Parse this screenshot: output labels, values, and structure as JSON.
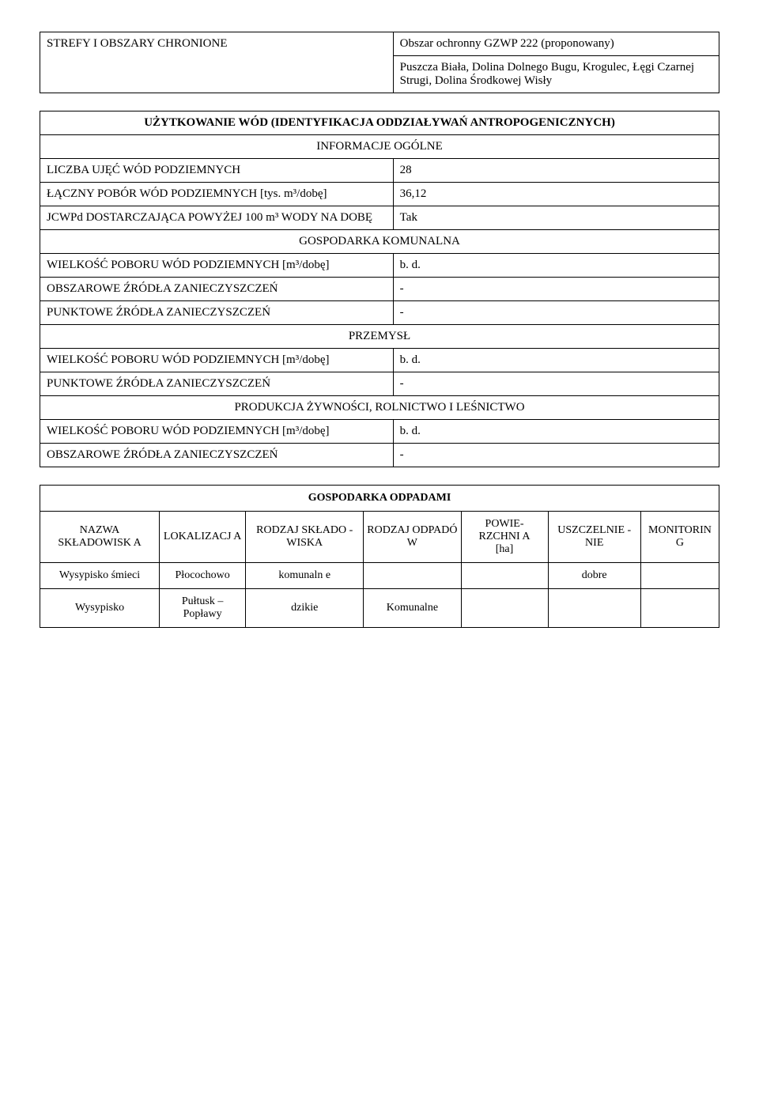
{
  "tbl1": {
    "r1c1": "STREFY I OBSZARY CHRONIONE",
    "r1c2": "Obszar ochronny GZWP 222 (proponowany)",
    "r2c2": "Puszcza Biała, Dolina Dolnego Bugu, Krogulec, Łęgi Czarnej Strugi, Dolina Środkowej Wisły"
  },
  "tbl2": {
    "title": "UŻYTKOWANIE WÓD (IDENTYFIKACJA ODDZIAŁYWAŃ ANTROPOGENICZNYCH)",
    "info": "INFORMACJE OGÓLNE",
    "r1l": "LICZBA UJĘĆ WÓD PODZIEMNYCH",
    "r1v": "28",
    "r2l": "ŁĄCZNY POBÓR WÓD PODZIEMNYCH [tys. m³/dobę]",
    "r2v": "36,12",
    "r3l": "JCWPd DOSTARCZAJĄCA POWYŻEJ 100 m³ WODY NA DOBĘ",
    "r3v": "Tak",
    "gk": "GOSPODARKA KOMUNALNA",
    "r4l": "WIELKOŚĆ POBORU WÓD PODZIEMNYCH [m³/dobę]",
    "r4v": "b. d.",
    "r5l": "OBSZAROWE ŹRÓDŁA ZANIECZYSZCZEŃ",
    "r5v": "-",
    "r6l": "PUNKTOWE ŹRÓDŁA ZANIECZYSZCZEŃ",
    "r6v": "-",
    "prz": "PRZEMYSŁ",
    "r7l": "WIELKOŚĆ POBORU WÓD PODZIEMNYCH [m³/dobę]",
    "r7v": "b. d.",
    "r8l": "PUNKTOWE ŹRÓDŁA ZANIECZYSZCZEŃ",
    "r8v": "-",
    "roln": "PRODUKCJA ŻYWNOŚCI, ROLNICTWO I LEŚNICTWO",
    "r9l": "WIELKOŚĆ POBORU WÓD PODZIEMNYCH [m³/dobę]",
    "r9v": "b. d.",
    "r10l": "OBSZAROWE ŹRÓDŁA ZANIECZYSZCZEŃ",
    "r10v": "-"
  },
  "tbl3": {
    "title": "GOSPODARKA ODPADAMI",
    "h1": "NAZWA SKŁADOWISK A",
    "h2": "LOKALIZACJ A",
    "h3": "RODZAJ SKŁADO -WISKA",
    "h4": "RODZAJ ODPADÓ W",
    "h5a": "POWIE- RZCHNI A",
    "h5b": "[ha]",
    "h6": "USZCZELNIE -NIE",
    "h7": "MONITORIN G",
    "rows": [
      {
        "c1": "Wysypisko śmieci",
        "c2": "Płocochowo",
        "c3": "komunaln e",
        "c4": "",
        "c5": "",
        "c6": "dobre",
        "c7": ""
      },
      {
        "c1": "Wysypisko",
        "c2": "Pułtusk – Popławy",
        "c3": "dzikie",
        "c4": "Komunalne",
        "c5": "",
        "c6": "",
        "c7": ""
      }
    ]
  }
}
